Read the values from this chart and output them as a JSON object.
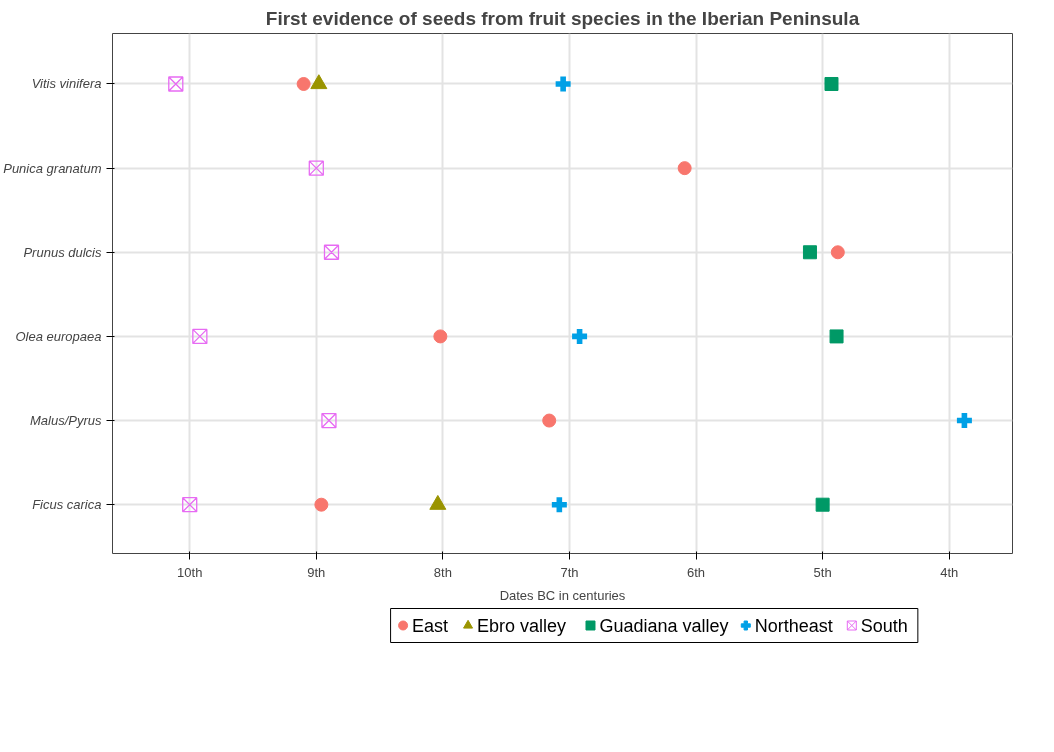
{
  "chart_data": {
    "type": "scatter",
    "orientation": "horizontal",
    "title": "First evidence of seeds from fruit species in the Iberian Peninsula",
    "xlabel": "Dates BC in centuries",
    "categories": [
      "Vitis vinifera",
      "Punica granatum",
      "Prunus dulcis",
      "Olea europaea",
      "Malus/Pyrus",
      "Ficus carica"
    ],
    "xlim": [
      10.61,
      3.5
    ],
    "xticks": [
      {
        "value": 10,
        "label": "10th"
      },
      {
        "value": 9,
        "label": "9th"
      },
      {
        "value": 8,
        "label": "8th"
      },
      {
        "value": 7,
        "label": "7th"
      },
      {
        "value": 6,
        "label": "6th"
      },
      {
        "value": 5,
        "label": "5th"
      },
      {
        "value": 4,
        "label": "4th"
      }
    ],
    "grid": true,
    "legend": "bottom",
    "series": [
      {
        "name": "East",
        "color": "#f8766d",
        "marker": "circle",
        "values": [
          9.1,
          6.09,
          4.88,
          8.02,
          7.16,
          8.96
        ]
      },
      {
        "name": "Ebro valley",
        "color": "#9a9400",
        "marker": "triangle",
        "values": [
          8.98,
          null,
          null,
          null,
          null,
          8.04
        ]
      },
      {
        "name": "Guadiana valley",
        "color": "#009966",
        "marker": "square",
        "values": [
          4.93,
          null,
          5.1,
          4.89,
          null,
          5.0
        ]
      },
      {
        "name": "Northeast",
        "color": "#00a0e6",
        "marker": "cross",
        "values": [
          7.05,
          null,
          null,
          6.92,
          3.88,
          7.08
        ]
      },
      {
        "name": "South",
        "color": "#e76bf3",
        "values": [
          10.11,
          9.0,
          8.88,
          9.92,
          8.9,
          10.0
        ]
      }
    ]
  }
}
